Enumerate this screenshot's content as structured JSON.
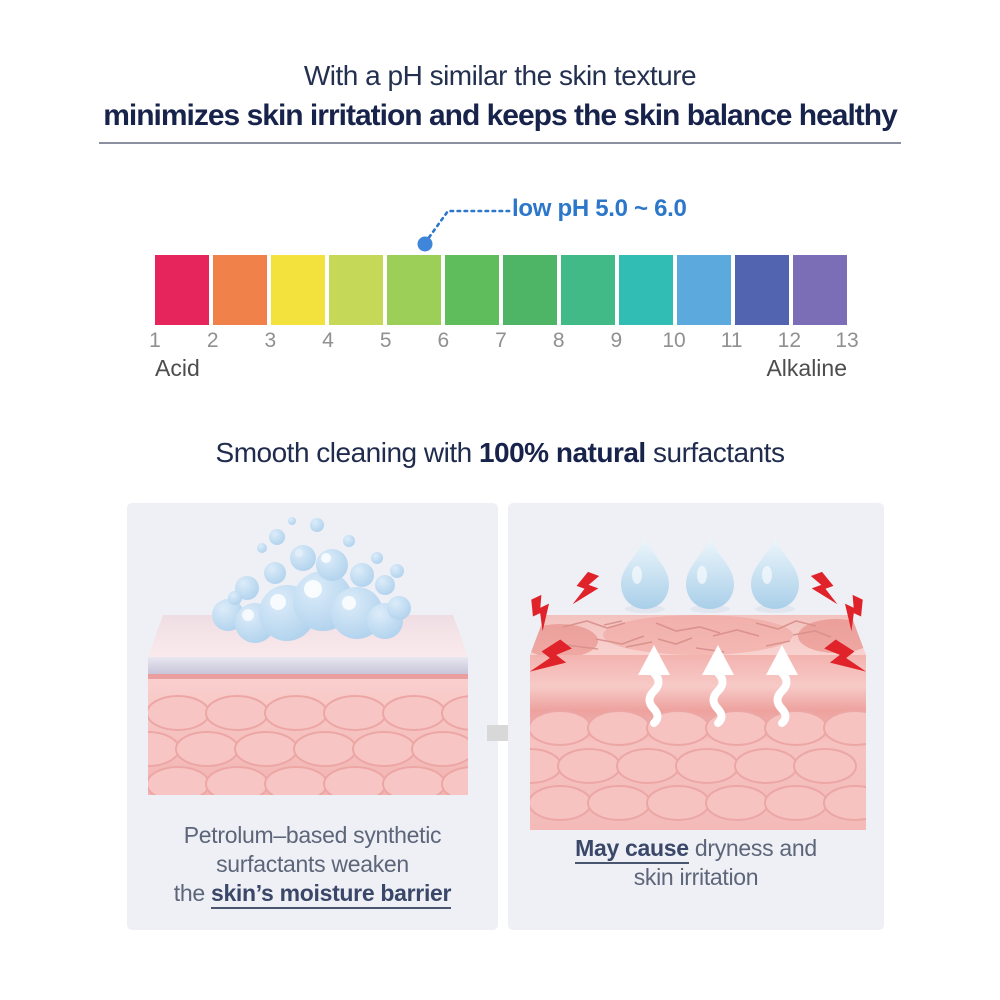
{
  "header": {
    "line1": "With a pH similar the skin texture",
    "line2": "minimizes skin irritation and keeps the skin balance healthy"
  },
  "ph_scale": {
    "annotation_label": "low pH 5.0 ~ 6.0",
    "annotation_color": "#2C77CA",
    "dot_color": "#3F85D9",
    "indicated_range": [
      5.0,
      6.0
    ],
    "blocks": [
      {
        "color": "#E7255D"
      },
      {
        "color": "#F0814A"
      },
      {
        "color": "#F3E23D"
      },
      {
        "color": "#C5D857"
      },
      {
        "color": "#9CCF58"
      },
      {
        "color": "#5FBD5B"
      },
      {
        "color": "#4FB566"
      },
      {
        "color": "#42BA88"
      },
      {
        "color": "#31BDB3"
      },
      {
        "color": "#5CA9DD"
      },
      {
        "color": "#5264AF"
      },
      {
        "color": "#7C6DB7"
      }
    ],
    "ticks": [
      "1",
      "2",
      "3",
      "4",
      "5",
      "6",
      "7",
      "8",
      "9",
      "10",
      "11",
      "12",
      "13"
    ],
    "left_label": "Acid",
    "right_label": "Alkaline"
  },
  "section2": {
    "title_pre": "Smooth cleaning with ",
    "title_bold": "100% natural",
    "title_post": " surfactants"
  },
  "comparison": {
    "left_caption": {
      "line1": "Petrolum–based synthetic",
      "line2": "surfactants weaken",
      "line3_pre": "the ",
      "line3_bold": "skin’s moisture barrier"
    },
    "right_caption": {
      "line1_bold": "May cause",
      "line1_rest": " dryness and",
      "line2": "skin irritation"
    }
  },
  "colors": {
    "title_navy": "#17234A",
    "panel_background": "#EEF0F6",
    "caption_gray_blue": "#5D6579",
    "lightning_red": "#E0232A",
    "foam_blue": "#B4D3EE",
    "skin_pink": "#F6C3C1",
    "mid_arrow_gray": "#D8D8D8"
  }
}
